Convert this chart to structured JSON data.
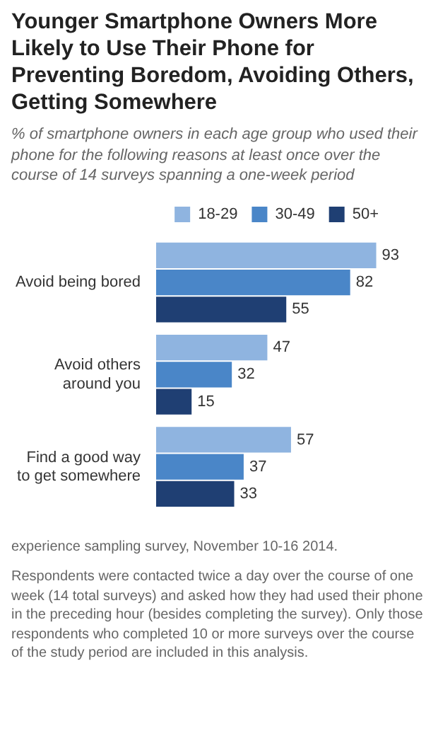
{
  "chart_data": {
    "type": "bar",
    "orientation": "horizontal",
    "title": "Younger Smartphone  Owners More Likely to Use Their Phone for Preventing Boredom, Avoiding Others, Getting Somewhere",
    "subtitle": "% of smartphone owners in each age group who used their phone for the following reasons at least once over the course of 14 surveys spanning a one-week period",
    "categories": [
      "Avoid being bored",
      "Avoid others around you",
      "Find a good way to get somewhere"
    ],
    "series": [
      {
        "name": "18-29",
        "color": "#8fb4e0",
        "values": [
          93,
          47,
          57
        ]
      },
      {
        "name": "30-49",
        "color": "#4a86c8",
        "values": [
          82,
          32,
          37
        ]
      },
      {
        "name": "50+",
        "color": "#1f3f73",
        "values": [
          55,
          15,
          33
        ]
      }
    ],
    "data_labels": true,
    "legend": "top",
    "annotations": [
      "experience sampling survey, November 10-16 2014.",
      "Respondents were contacted twice a day over the course of one week (14 total surveys) and asked how they had used their phone in the preceding hour (besides completing the survey). Only those respondents who completed 10 or more surveys over the course of the study period are included in this analysis."
    ]
  }
}
